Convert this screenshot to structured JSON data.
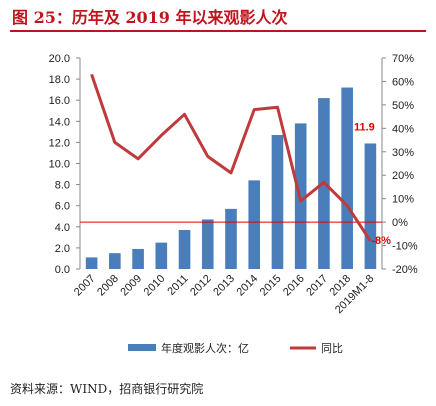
{
  "title": "图 25：历年及 2019 年以来观影人次",
  "source": "资料来源：WIND，招商银行研究院",
  "chart_data": {
    "type": "bar+line",
    "categories": [
      "2007",
      "2008",
      "2009",
      "2010",
      "2011",
      "2012",
      "2013",
      "2014",
      "2015",
      "2016",
      "2017",
      "2018",
      "2019M1-8"
    ],
    "series": [
      {
        "name": "年度观影人次：亿",
        "type": "bar",
        "axis": "left",
        "color": "#4a7ebb",
        "values": [
          1.1,
          1.5,
          1.9,
          2.5,
          3.7,
          4.7,
          5.7,
          8.4,
          12.7,
          13.8,
          16.2,
          17.2,
          11.9
        ]
      },
      {
        "name": "同比",
        "type": "line",
        "axis": "right",
        "color": "#c0393b",
        "values": [
          63,
          34,
          27,
          37,
          46,
          28,
          21,
          48,
          49,
          9,
          17,
          7,
          -8
        ]
      }
    ],
    "y_left": {
      "min": 0,
      "max": 20,
      "step": 2,
      "labels": [
        "0.0",
        "2.0",
        "4.0",
        "6.0",
        "8.0",
        "10.0",
        "12.0",
        "14.0",
        "16.0",
        "18.0",
        "20.0"
      ]
    },
    "y_right": {
      "min": -20,
      "max": 70,
      "step": 10,
      "labels": [
        "-20%",
        "-10%",
        "0%",
        "10%",
        "20%",
        "30%",
        "40%",
        "50%",
        "60%",
        "70%"
      ]
    },
    "annotations": [
      {
        "text": "11.9",
        "color": "#e00000"
      },
      {
        "text": "-8%",
        "color": "#e00000"
      }
    ],
    "zero_line_color": "#e00000",
    "legend_position": "bottom"
  }
}
